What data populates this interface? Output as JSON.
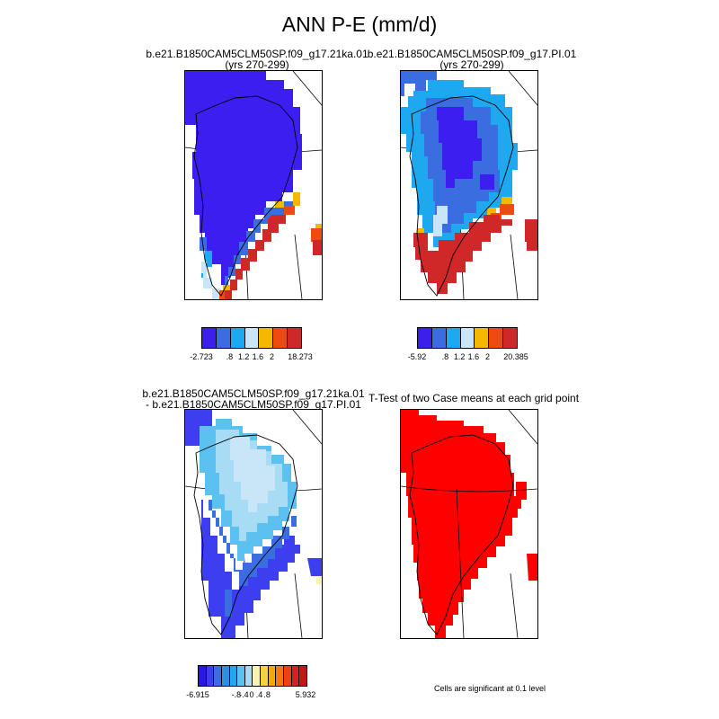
{
  "title": "ANN P-E (mm/d)",
  "panels": [
    {
      "title_line1": "b.e21.B1850CAM5CLM50SP.f09_g17.21ka.01",
      "title_line2": "(yrs 270-299)",
      "colorbar": {
        "colors": [
          "#3c1ff0",
          "#3a6ee0",
          "#1ea8f0",
          "#c8e6f8",
          "#f5b800",
          "#f04a10",
          "#d02828"
        ],
        "labels": [
          "-2.723",
          ".8",
          "1.2",
          "1.6",
          "2",
          "18.273"
        ]
      }
    },
    {
      "title_line1": "b.e21.B1850CAM5CLM50SP.f09_g17.PI.01",
      "title_line2": "(yrs 270-299)",
      "colorbar": {
        "colors": [
          "#3c1ff0",
          "#3a6ee0",
          "#1ea8f0",
          "#c8e6f8",
          "#f5b800",
          "#f04a10",
          "#d02828"
        ],
        "labels": [
          "-5.92",
          ".8",
          "1.2",
          "1.6",
          "2",
          "20.385"
        ]
      }
    },
    {
      "title_line1": "b.e21.B1850CAM5CLM50SP.f09_g17.21ka.01",
      "title_line2": "- b.e21.B1850CAM5CLM50SP.f09_g17.PI.01",
      "colorbar": {
        "colors": [
          "#2a18e0",
          "#3d3ef0",
          "#3a6ee0",
          "#2a90e8",
          "#1ea8f0",
          "#5cc0f0",
          "#a8dcf4",
          "#f8f4b0",
          "#f8d040",
          "#f5a800",
          "#f07a10",
          "#f04010",
          "#d82020",
          "#c01818"
        ],
        "labels": [
          "-6.915",
          "-.8",
          "-.4",
          "0",
          ".4",
          ".8",
          "5.932"
        ]
      }
    },
    {
      "title_line1": "T-Test of two Case means at each grid point",
      "title_line2": "",
      "note": "Cells are significant at 0.1 level"
    }
  ],
  "colors": {
    "deep_blue": "#3c1ff0",
    "mid_blue": "#3a6ee0",
    "light_blue": "#1ea8f0",
    "pale_blue": "#c8e6f8",
    "orange": "#f5b800",
    "red_orange": "#f04a10",
    "red": "#d02828",
    "ttest_red": "#ff0000"
  }
}
